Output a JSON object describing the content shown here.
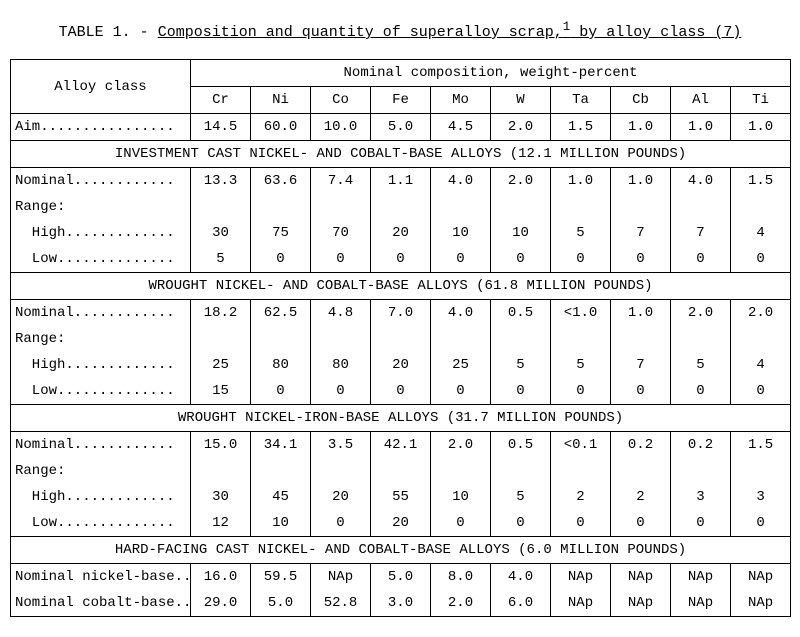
{
  "title_prefix": "TABLE 1. - ",
  "title_main": "Composition and quantity of superalloy scrap,",
  "title_sup": "1",
  "title_tail": " by alloy class (7)",
  "headers": {
    "alloy_class": "Alloy class",
    "nominal_comp": "Nominal composition, weight-percent",
    "elements": [
      "Cr",
      "Ni",
      "Co",
      "Fe",
      "Mo",
      "W",
      "Ta",
      "Cb",
      "Al",
      "Ti"
    ]
  },
  "aim": {
    "label": "Aim................",
    "vals": [
      "14.5",
      "60.0",
      "10.0",
      "5.0",
      "4.5",
      "2.0",
      "1.5",
      "1.0",
      "1.0",
      "1.0"
    ]
  },
  "sections": [
    {
      "heading": "INVESTMENT CAST NICKEL- AND COBALT-BASE ALLOYS (12.1 MILLION POUNDS)",
      "rows": [
        {
          "label": "Nominal............",
          "vals": [
            "13.3",
            "63.6",
            "7.4",
            "1.1",
            "4.0",
            "2.0",
            "1.0",
            "1.0",
            "4.0",
            "1.5"
          ]
        },
        {
          "label": "Range:",
          "vals": [
            "",
            "",
            "",
            "",
            "",
            "",
            "",
            "",
            "",
            ""
          ]
        },
        {
          "label": "  High.............",
          "vals": [
            "30",
            "75",
            "70",
            "20",
            "10",
            "10",
            "5",
            "7",
            "7",
            "4"
          ]
        },
        {
          "label": "  Low..............",
          "vals": [
            "5",
            "0",
            "0",
            "0",
            "0",
            "0",
            "0",
            "0",
            "0",
            "0"
          ]
        }
      ]
    },
    {
      "heading": "WROUGHT NICKEL- AND COBALT-BASE ALLOYS (61.8 MILLION POUNDS)",
      "rows": [
        {
          "label": "Nominal............",
          "vals": [
            "18.2",
            "62.5",
            "4.8",
            "7.0",
            "4.0",
            "0.5",
            "<1.0",
            "1.0",
            "2.0",
            "2.0"
          ]
        },
        {
          "label": "Range:",
          "vals": [
            "",
            "",
            "",
            "",
            "",
            "",
            "",
            "",
            "",
            ""
          ]
        },
        {
          "label": "  High.............",
          "vals": [
            "25",
            "80",
            "80",
            "20",
            "25",
            "5",
            "5",
            "7",
            "5",
            "4"
          ]
        },
        {
          "label": "  Low..............",
          "vals": [
            "15",
            "0",
            "0",
            "0",
            "0",
            "0",
            "0",
            "0",
            "0",
            "0"
          ]
        }
      ]
    },
    {
      "heading": "WROUGHT NICKEL-IRON-BASE ALLOYS (31.7 MILLION POUNDS)",
      "rows": [
        {
          "label": "Nominal............",
          "vals": [
            "15.0",
            "34.1",
            "3.5",
            "42.1",
            "2.0",
            "0.5",
            "<0.1",
            "0.2",
            "0.2",
            "1.5"
          ]
        },
        {
          "label": "Range:",
          "vals": [
            "",
            "",
            "",
            "",
            "",
            "",
            "",
            "",
            "",
            ""
          ]
        },
        {
          "label": "  High.............",
          "vals": [
            "30",
            "45",
            "20",
            "55",
            "10",
            "5",
            "2",
            "2",
            "3",
            "3"
          ]
        },
        {
          "label": "  Low..............",
          "vals": [
            "12",
            "10",
            "0",
            "20",
            "0",
            "0",
            "0",
            "0",
            "0",
            "0"
          ]
        }
      ]
    },
    {
      "heading": "HARD-FACING CAST NICKEL- AND COBALT-BASE ALLOYS (6.0 MILLION POUNDS)",
      "rows": [
        {
          "label": "Nominal nickel-base..",
          "vals": [
            "16.0",
            "59.5",
            "NAp",
            "5.0",
            "8.0",
            "4.0",
            "NAp",
            "NAp",
            "NAp",
            "NAp"
          ]
        },
        {
          "label": "Nominal cobalt-base..",
          "vals": [
            "29.0",
            "5.0",
            "52.8",
            "3.0",
            "2.0",
            "6.0",
            "NAp",
            "NAp",
            "NAp",
            "NAp"
          ]
        }
      ]
    }
  ],
  "style": {
    "font_family": "Courier New",
    "font_size_pt": 11,
    "border_color": "#000000",
    "background_color": "#ffffff"
  }
}
